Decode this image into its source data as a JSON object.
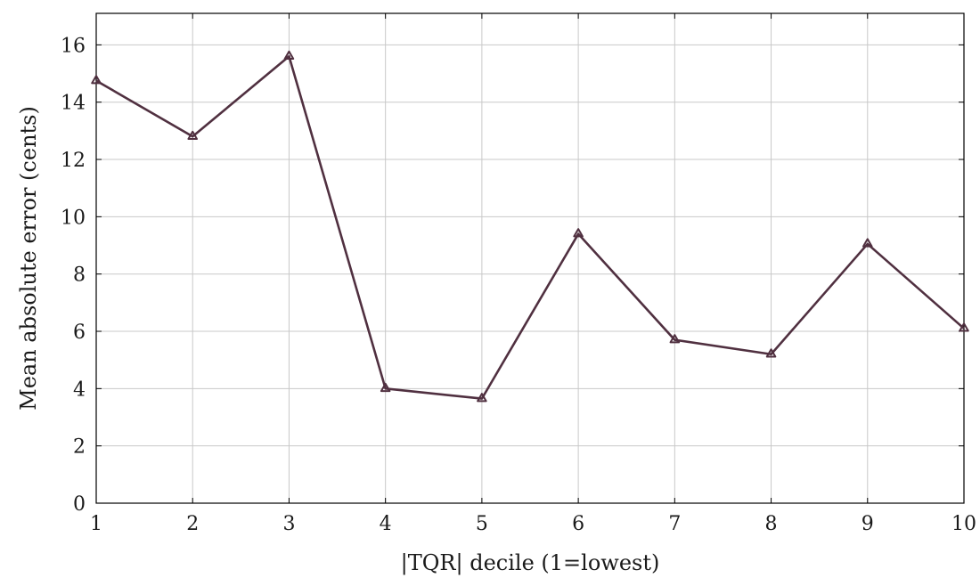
{
  "chart_data": {
    "type": "line",
    "title": "",
    "xlabel": "|TQR| decile (1=lowest)",
    "ylabel": "Mean absolute error (cents)",
    "x": [
      1,
      2,
      3,
      4,
      5,
      6,
      7,
      8,
      9,
      10
    ],
    "series": [
      {
        "name": "",
        "values": [
          14.75,
          12.8,
          15.6,
          4.0,
          3.65,
          9.4,
          5.7,
          5.2,
          9.05,
          6.1
        ],
        "color": "#503040",
        "marker": "triangle"
      }
    ],
    "xlim": [
      1,
      10
    ],
    "ylim": [
      0,
      17.1
    ],
    "xticks": [
      1,
      2,
      3,
      4,
      5,
      6,
      7,
      8,
      9,
      10
    ],
    "yticks": [
      0,
      2,
      4,
      6,
      8,
      10,
      12,
      14,
      16
    ],
    "grid": true,
    "legend": "none"
  }
}
